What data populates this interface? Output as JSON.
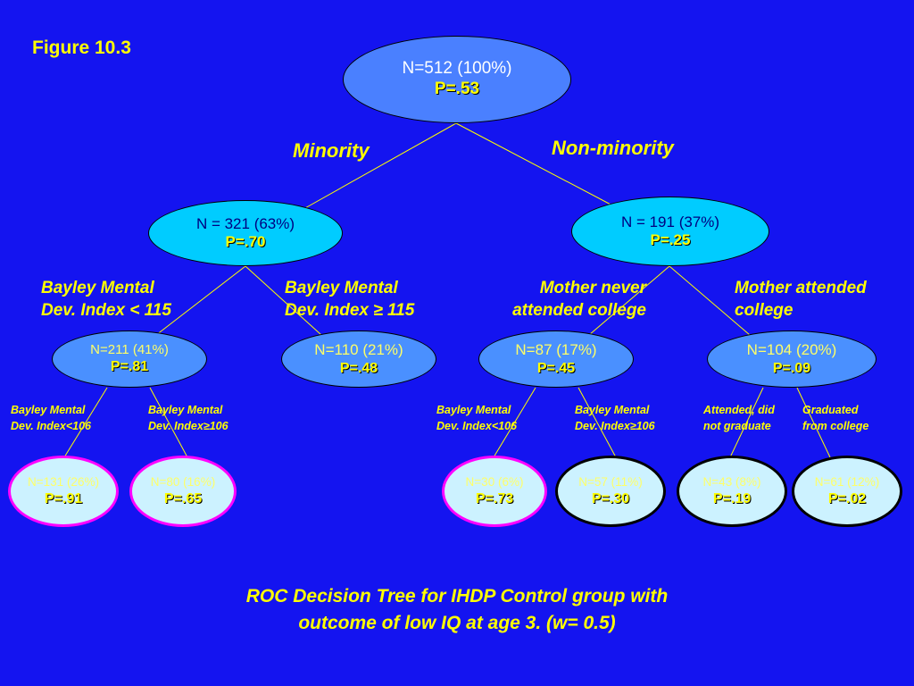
{
  "figure_label": "Figure 10.3",
  "root": {
    "n": "N=512 (100%)",
    "p": "P=.53"
  },
  "branches": {
    "left": "Minority",
    "right": "Non-minority"
  },
  "level1": [
    {
      "n": "N = 321 (63%)",
      "p": "P=.70"
    },
    {
      "n": "N = 191 (37%)",
      "p": "P=.25"
    }
  ],
  "level2_splits": [
    {
      "line1": "Bayley Mental",
      "line2": "Dev. Index < 115"
    },
    {
      "line1": "Bayley Mental",
      "line2": "Dev. Index ≥ 115"
    },
    {
      "line1": "Mother never",
      "line2": "attended college"
    },
    {
      "line1": "Mother attended",
      "line2": "college"
    }
  ],
  "level2": [
    {
      "n": "N=211 (41%)",
      "p": "P=.81"
    },
    {
      "n": "N=110 (21%)",
      "p": "P=.48"
    },
    {
      "n": "N=87 (17%)",
      "p": "P=.45"
    },
    {
      "n": "N=104 (20%)",
      "p": "P=.09"
    }
  ],
  "level3_splits": [
    {
      "line1": "Bayley Mental",
      "line2": "Dev. Index<106"
    },
    {
      "line1": "Bayley Mental",
      "line2": "Dev. Index≥106"
    },
    {
      "line1": "Bayley Mental",
      "line2": "Dev. Index<106"
    },
    {
      "line1": "Bayley Mental",
      "line2": "Dev. Index≥106"
    },
    {
      "line1": "Attended, did",
      "line2": "not graduate"
    },
    {
      "line1": "Graduated",
      "line2": "from college"
    }
  ],
  "level3": [
    {
      "n": "N=131 (26%)",
      "p": "P=.91"
    },
    {
      "n": "N=80 (16%)",
      "p": "P=.65"
    },
    {
      "n": "N=30 (6%)",
      "p": "P=.73"
    },
    {
      "n": "N=57 (11%)",
      "p": "P=.30"
    },
    {
      "n": "N=43 (8%)",
      "p": "P=.19"
    },
    {
      "n": "N=61 (12%)",
      "p": "P=.02"
    }
  ],
  "caption": {
    "line1": "ROC Decision Tree for IHDP Control group with",
    "line2": "outcome of low IQ at age 3.  (w= 0.5)"
  },
  "colors": {
    "background": "#1414f0",
    "label_text": "#ffff00",
    "root_fill": "#4a80ff",
    "level1_fill": "#00ccff",
    "level2_fill": "#4a90ff",
    "leaf_fill": "#ccf2ff",
    "highlight_border": "#ff00ff"
  }
}
